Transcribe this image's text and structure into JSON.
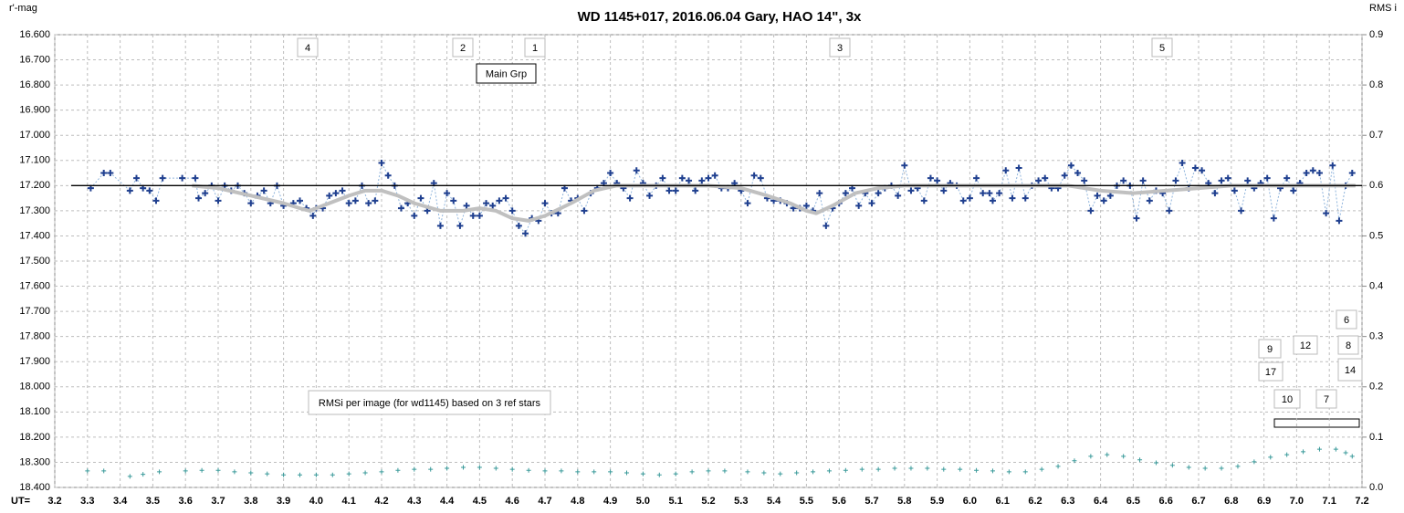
{
  "chart_data": {
    "type": "scatter",
    "title": "WD 1145+017,  2016.06.04  Gary, HAO  14\", 3x",
    "y_label": "r'-mag",
    "y2_label": "RMS i",
    "x_label": "UT=",
    "xlim": [
      3.2,
      7.2
    ],
    "xticks": [
      3.2,
      3.3,
      3.4,
      3.5,
      3.6,
      3.7,
      3.8,
      3.9,
      {
        "value": 4,
        "label": "4.0"
      },
      4.1,
      4.2,
      4.3,
      4.4,
      4.5,
      4.6,
      4.7,
      4.8,
      4.9,
      {
        "value": 5,
        "label": "5.0"
      },
      5.1,
      5.2,
      5.3,
      5.4,
      5.5,
      5.6,
      5.7,
      5.8,
      5.9,
      {
        "value": 6,
        "label": "6.0"
      },
      6.1,
      6.2,
      6.3,
      6.4,
      6.5,
      6.6,
      6.7,
      6.8,
      6.9,
      {
        "value": 7,
        "label": "7.0"
      },
      7.1,
      7.2
    ],
    "ylim": [
      16.6,
      18.4
    ],
    "y_inverted": true,
    "yticks": [
      {
        "value": 16.6,
        "label": "16.600"
      },
      {
        "value": 16.7,
        "label": "16.700"
      },
      {
        "value": 16.8,
        "label": "16.800"
      },
      {
        "value": 16.9,
        "label": "16.900"
      },
      {
        "value": 17,
        "label": "17.000"
      },
      {
        "value": 17.1,
        "label": "17.100"
      },
      {
        "value": 17.2,
        "label": "17.200"
      },
      {
        "value": 17.3,
        "label": "17.300"
      },
      {
        "value": 17.4,
        "label": "17.400"
      },
      {
        "value": 17.5,
        "label": "17.500"
      },
      {
        "value": 17.6,
        "label": "17.600"
      },
      {
        "value": 17.7,
        "label": "17.700"
      },
      {
        "value": 17.8,
        "label": "17.800"
      },
      {
        "value": 17.9,
        "label": "17.900"
      },
      {
        "value": 18,
        "label": "18.000"
      },
      {
        "value": 18.1,
        "label": "18.100"
      },
      {
        "value": 18.2,
        "label": "18.200"
      },
      {
        "value": 18.3,
        "label": "18.300"
      },
      {
        "value": 18.4,
        "label": "18.400"
      }
    ],
    "y2lim": [
      0,
      0.9
    ],
    "y2ticks": [
      {
        "value": 0,
        "label": "0.0"
      },
      0.1,
      0.2,
      0.3,
      0.4,
      0.5,
      0.6,
      0.7,
      0.8,
      0.9
    ],
    "grid": true,
    "series": [
      {
        "style": "plus-dotted",
        "color": "#1f3f8f",
        "line_color": "#8fb4dc",
        "x": [
          3.31,
          3.35,
          3.37,
          3.43,
          3.45,
          3.47,
          3.49,
          3.51,
          3.53,
          3.59,
          3.63,
          3.64,
          3.66,
          3.68,
          3.7,
          3.72,
          3.74,
          3.76,
          3.78,
          3.8,
          3.82,
          3.84,
          3.86,
          3.88,
          3.9,
          3.93,
          3.95,
          3.97,
          3.99,
          4.0,
          4.02,
          4.04,
          4.06,
          4.08,
          4.1,
          4.12,
          4.14,
          4.16,
          4.18,
          4.2,
          4.22,
          4.24,
          4.26,
          4.28,
          4.3,
          4.32,
          4.34,
          4.36,
          4.38,
          4.4,
          4.42,
          4.44,
          4.46,
          4.48,
          4.5,
          4.52,
          4.54,
          4.56,
          4.58,
          4.6,
          4.62,
          4.64,
          4.66,
          4.68,
          4.7,
          4.72,
          4.74,
          4.76,
          4.78,
          4.8,
          4.82,
          4.84,
          4.86,
          4.88,
          4.9,
          4.92,
          4.94,
          4.96,
          4.98,
          5.0,
          5.02,
          5.04,
          5.06,
          5.08,
          5.1,
          5.12,
          5.14,
          5.16,
          5.18,
          5.2,
          5.22,
          5.24,
          5.26,
          5.28,
          5.3,
          5.32,
          5.34,
          5.36,
          5.38,
          5.4,
          5.42,
          5.44,
          5.46,
          5.48,
          5.5,
          5.52,
          5.54,
          5.56,
          5.58,
          5.6,
          5.62,
          5.64,
          5.66,
          5.68,
          5.7,
          5.72,
          5.74,
          5.76,
          5.78,
          5.8,
          5.82,
          5.84,
          5.86,
          5.88,
          5.9,
          5.92,
          5.94,
          5.96,
          5.98,
          6.0,
          6.02,
          6.04,
          6.06,
          6.07,
          6.09,
          6.11,
          6.13,
          6.15,
          6.17,
          6.19,
          6.21,
          6.23,
          6.25,
          6.27,
          6.29,
          6.31,
          6.33,
          6.35,
          6.37,
          6.39,
          6.41,
          6.43,
          6.45,
          6.47,
          6.49,
          6.51,
          6.53,
          6.55,
          6.57,
          6.59,
          6.61,
          6.63,
          6.65,
          6.67,
          6.69,
          6.71,
          6.73,
          6.75,
          6.77,
          6.79,
          6.81,
          6.83,
          6.85,
          6.87,
          6.89,
          6.91,
          6.93,
          6.95,
          6.97,
          6.99,
          7.01,
          7.03,
          7.05,
          7.07,
          7.09,
          7.11,
          7.13,
          7.15,
          7.17
        ],
        "values": [
          17.21,
          17.15,
          17.15,
          17.22,
          17.17,
          17.21,
          17.22,
          17.26,
          17.17,
          17.17,
          17.17,
          17.25,
          17.23,
          17.2,
          17.26,
          17.2,
          17.22,
          17.2,
          17.23,
          17.27,
          17.24,
          17.22,
          17.27,
          17.2,
          17.28,
          17.27,
          17.26,
          17.29,
          17.32,
          17.29,
          17.29,
          17.24,
          17.23,
          17.22,
          17.27,
          17.26,
          17.2,
          17.27,
          17.26,
          17.11,
          17.16,
          17.2,
          17.29,
          17.27,
          17.32,
          17.25,
          17.3,
          17.19,
          17.36,
          17.23,
          17.26,
          17.36,
          17.28,
          17.32,
          17.32,
          17.27,
          17.28,
          17.26,
          17.25,
          17.3,
          17.36,
          17.39,
          17.33,
          17.34,
          17.27,
          17.31,
          17.31,
          17.21,
          17.26,
          17.25,
          17.3,
          17.23,
          17.21,
          17.19,
          17.15,
          17.19,
          17.21,
          17.25,
          17.14,
          17.19,
          17.24,
          17.2,
          17.17,
          17.22,
          17.22,
          17.17,
          17.18,
          17.22,
          17.18,
          17.17,
          17.16,
          17.21,
          17.21,
          17.19,
          17.22,
          17.27,
          17.16,
          17.17,
          17.25,
          17.26,
          17.26,
          17.27,
          17.29,
          17.29,
          17.28,
          17.3,
          17.23,
          17.36,
          17.29,
          17.27,
          17.23,
          17.21,
          17.28,
          17.23,
          17.27,
          17.23,
          17.21,
          17.2,
          17.24,
          17.12,
          17.22,
          17.21,
          17.26,
          17.17,
          17.18,
          17.22,
          17.19,
          17.2,
          17.26,
          17.25,
          17.17,
          17.23,
          17.23,
          17.26,
          17.23,
          17.14,
          17.25,
          17.13,
          17.25,
          17.2,
          17.18,
          17.17,
          17.21,
          17.21,
          17.16,
          17.12,
          17.15,
          17.18,
          17.3,
          17.24,
          17.26,
          17.24,
          17.2,
          17.18,
          17.2,
          17.33,
          17.18,
          17.26,
          17.22,
          17.23,
          17.3,
          17.18,
          17.11,
          17.21,
          17.13,
          17.14,
          17.19,
          17.23,
          17.18,
          17.17,
          17.22,
          17.3,
          17.18,
          17.21,
          17.19,
          17.17,
          17.33,
          17.21,
          17.17,
          17.22,
          17.19,
          17.15,
          17.14,
          17.15,
          17.31,
          17.12,
          17.34,
          17.2,
          17.15
        ]
      },
      {
        "style": "smooth",
        "color": "#c0c0c0",
        "x": [
          3.62,
          3.7,
          3.8,
          3.9,
          3.95,
          3.98,
          4.02,
          4.1,
          4.15,
          4.2,
          4.25,
          4.3,
          4.38,
          4.45,
          4.5,
          4.55,
          4.6,
          4.65,
          4.7,
          4.78,
          4.85,
          4.92,
          5.0,
          5.1,
          5.2,
          5.3,
          5.38,
          5.45,
          5.5,
          5.53,
          5.58,
          5.65,
          5.72,
          5.8,
          6.2,
          6.3,
          6.4,
          6.5,
          6.6,
          6.7,
          6.8,
          7.18
        ],
        "values": [
          17.2,
          17.21,
          17.24,
          17.27,
          17.29,
          17.3,
          17.28,
          17.24,
          17.22,
          17.22,
          17.24,
          17.27,
          17.3,
          17.3,
          17.29,
          17.3,
          17.33,
          17.34,
          17.32,
          17.27,
          17.22,
          17.2,
          17.2,
          17.2,
          17.2,
          17.21,
          17.24,
          17.27,
          17.3,
          17.31,
          17.28,
          17.23,
          17.21,
          17.2,
          17.2,
          17.2,
          17.22,
          17.23,
          17.22,
          17.21,
          17.2,
          17.2
        ]
      },
      {
        "style": "line",
        "color": "#000000",
        "x": [
          3.25,
          7.2
        ],
        "values": [
          17.2,
          17.2
        ]
      },
      {
        "style": "plus",
        "axis": "y2",
        "color": "#3a9a9a",
        "x": [
          3.3,
          3.35,
          3.43,
          3.47,
          3.52,
          3.6,
          3.65,
          3.7,
          3.75,
          3.8,
          3.85,
          3.9,
          3.95,
          4.0,
          4.05,
          4.1,
          4.15,
          4.2,
          4.25,
          4.3,
          4.35,
          4.4,
          4.45,
          4.5,
          4.55,
          4.6,
          4.65,
          4.7,
          4.75,
          4.8,
          4.85,
          4.9,
          4.95,
          5.0,
          5.05,
          5.1,
          5.15,
          5.2,
          5.25,
          5.32,
          5.37,
          5.42,
          5.47,
          5.52,
          5.57,
          5.62,
          5.67,
          5.72,
          5.77,
          5.82,
          5.87,
          5.92,
          5.97,
          6.02,
          6.07,
          6.12,
          6.17,
          6.22,
          6.27,
          6.32,
          6.37,
          6.42,
          6.47,
          6.52,
          6.57,
          6.62,
          6.67,
          6.72,
          6.77,
          6.82,
          6.87,
          6.92,
          6.97,
          7.02,
          7.07,
          7.12,
          7.15,
          7.17
        ],
        "values": [
          0.033,
          0.033,
          0.022,
          0.026,
          0.031,
          0.033,
          0.034,
          0.034,
          0.031,
          0.029,
          0.027,
          0.025,
          0.025,
          0.025,
          0.025,
          0.027,
          0.029,
          0.031,
          0.034,
          0.036,
          0.036,
          0.038,
          0.04,
          0.04,
          0.038,
          0.036,
          0.034,
          0.033,
          0.033,
          0.031,
          0.031,
          0.031,
          0.029,
          0.027,
          0.025,
          0.027,
          0.031,
          0.033,
          0.033,
          0.031,
          0.029,
          0.027,
          0.029,
          0.031,
          0.033,
          0.034,
          0.036,
          0.036,
          0.038,
          0.038,
          0.038,
          0.036,
          0.036,
          0.034,
          0.033,
          0.031,
          0.031,
          0.036,
          0.042,
          0.053,
          0.062,
          0.065,
          0.062,
          0.055,
          0.049,
          0.044,
          0.04,
          0.038,
          0.038,
          0.042,
          0.051,
          0.06,
          0.065,
          0.071,
          0.076,
          0.076,
          0.069,
          0.062
        ]
      }
    ],
    "annotations": [
      "4",
      "2",
      "1",
      "Main Grp",
      "3",
      "5",
      "RMSi per image (for wd1145) based on 3 ref stars",
      "6",
      "9",
      "12",
      "8",
      "17",
      "14",
      "10",
      "7"
    ]
  }
}
